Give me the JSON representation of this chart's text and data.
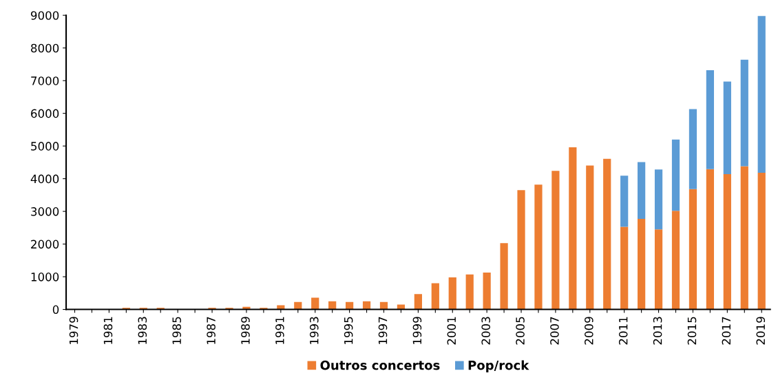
{
  "chart_data": {
    "type": "bar",
    "stacked": true,
    "categories": [
      "1979",
      null,
      "1981",
      null,
      "1983",
      null,
      "1985",
      null,
      "1987",
      null,
      "1989",
      null,
      "1991",
      null,
      "1993",
      null,
      "1995",
      null,
      "1997",
      null,
      "1999",
      null,
      "2001",
      null,
      "2003",
      null,
      "2005",
      null,
      "2007",
      null,
      "2009",
      null,
      "2011",
      null,
      "2013",
      null,
      "2015",
      null,
      "2017",
      null,
      "2019"
    ],
    "series": [
      {
        "name": "Outros concertos",
        "color": "#ed7d31",
        "values": [
          0,
          0,
          0,
          50,
          50,
          50,
          0,
          0,
          50,
          50,
          80,
          50,
          130,
          230,
          360,
          250,
          230,
          250,
          230,
          150,
          470,
          800,
          980,
          1070,
          1130,
          2030,
          3650,
          3820,
          4240,
          4960,
          4400,
          4610,
          2530,
          2770,
          2450,
          3020,
          3680,
          4290,
          4140,
          4380,
          4180
        ]
      },
      {
        "name": "Pop/rock",
        "color": "#5b9bd5",
        "values": [
          null,
          null,
          null,
          null,
          null,
          null,
          null,
          null,
          null,
          null,
          null,
          null,
          null,
          null,
          null,
          null,
          null,
          null,
          null,
          null,
          null,
          null,
          null,
          null,
          null,
          null,
          null,
          null,
          null,
          null,
          null,
          null,
          1560,
          1740,
          1830,
          2180,
          2450,
          3030,
          2830,
          3260,
          4800
        ]
      }
    ],
    "ylim": [
      0,
      9000
    ],
    "yticks": [
      0,
      1000,
      2000,
      3000,
      4000,
      5000,
      6000,
      7000,
      8000,
      9000
    ],
    "grid": false,
    "legend": "bottom"
  }
}
